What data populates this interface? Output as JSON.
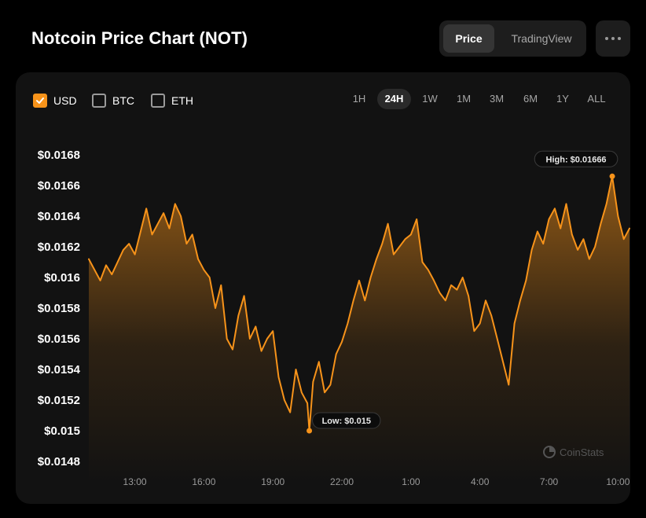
{
  "header": {
    "title": "Notcoin Price Chart (NOT)",
    "view_options": [
      "Price",
      "TradingView"
    ],
    "selected_view": "Price",
    "more_icon": "more-horizontal-icon"
  },
  "currency_options": [
    {
      "label": "USD",
      "checked": true
    },
    {
      "label": "BTC",
      "checked": false
    },
    {
      "label": "ETH",
      "checked": false
    }
  ],
  "time_ranges": [
    "1H",
    "24H",
    "1W",
    "1M",
    "3M",
    "6M",
    "1Y",
    "ALL"
  ],
  "selected_range": "24H",
  "watermark": "CoinStats",
  "colors": {
    "line": "#f7931a",
    "accent": "#f7931a",
    "background": "#000000",
    "card": "#121212"
  },
  "chart_data": {
    "type": "area",
    "title": "",
    "xlabel": "",
    "ylabel": "",
    "x_ticks": [
      "13:00",
      "16:00",
      "19:00",
      "22:00",
      "1:00",
      "4:00",
      "7:00",
      "10:00"
    ],
    "y_ticks": [
      "$0.0168",
      "$0.0166",
      "$0.0164",
      "$0.0162",
      "$0.016",
      "$0.0158",
      "$0.0156",
      "$0.0154",
      "$0.0152",
      "$0.015",
      "$0.0148"
    ],
    "ylim": [
      0.0148,
      0.0168
    ],
    "grid": false,
    "annotations": [
      {
        "label": "High: $0.01666",
        "time": "9:45",
        "value": 0.01666
      },
      {
        "label": "Low: $0.015",
        "time": "20:35",
        "value": 0.015
      }
    ],
    "series": [
      {
        "x": [
          "11:00",
          "11:15",
          "11:30",
          "11:45",
          "12:00",
          "12:15",
          "12:30",
          "12:45",
          "13:00",
          "13:15",
          "13:30",
          "13:45",
          "14:00",
          "14:15",
          "14:30",
          "14:45",
          "15:00",
          "15:15",
          "15:30",
          "15:45",
          "16:00",
          "16:15",
          "16:30",
          "16:45",
          "17:00",
          "17:15",
          "17:30",
          "17:45",
          "18:00",
          "18:15",
          "18:30",
          "18:45",
          "19:00",
          "19:15",
          "19:30",
          "19:45",
          "20:00",
          "20:15",
          "20:30",
          "20:35",
          "20:45",
          "21:00",
          "21:15",
          "21:30",
          "21:45",
          "22:00",
          "22:15",
          "22:30",
          "22:45",
          "23:00",
          "23:15",
          "23:30",
          "23:45",
          "0:00",
          "0:15",
          "0:30",
          "0:45",
          "1:00",
          "1:15",
          "1:30",
          "1:45",
          "2:00",
          "2:15",
          "2:30",
          "2:45",
          "3:00",
          "3:15",
          "3:30",
          "3:45",
          "4:00",
          "4:15",
          "4:30",
          "4:45",
          "5:00",
          "5:15",
          "5:30",
          "5:45",
          "6:00",
          "6:15",
          "6:30",
          "6:45",
          "7:00",
          "7:15",
          "7:30",
          "7:45",
          "8:00",
          "8:15",
          "8:30",
          "8:45",
          "9:00",
          "9:15",
          "9:30",
          "9:45",
          "10:00",
          "10:15",
          "10:30"
        ],
        "y": [
          0.01612,
          0.01605,
          0.01598,
          0.01608,
          0.01602,
          0.0161,
          0.01618,
          0.01622,
          0.01615,
          0.0163,
          0.01645,
          0.01628,
          0.01635,
          0.01642,
          0.01632,
          0.01648,
          0.0164,
          0.01622,
          0.01628,
          0.01612,
          0.01605,
          0.016,
          0.0158,
          0.01595,
          0.0156,
          0.01553,
          0.01575,
          0.01588,
          0.0156,
          0.01568,
          0.01552,
          0.0156,
          0.01565,
          0.01535,
          0.0152,
          0.01512,
          0.0154,
          0.01525,
          0.01518,
          0.015,
          0.01532,
          0.01545,
          0.01525,
          0.0153,
          0.0155,
          0.01558,
          0.0157,
          0.01585,
          0.01598,
          0.01585,
          0.016,
          0.01612,
          0.01622,
          0.01635,
          0.01615,
          0.0162,
          0.01625,
          0.01628,
          0.01638,
          0.0161,
          0.01605,
          0.01598,
          0.0159,
          0.01585,
          0.01595,
          0.01592,
          0.016,
          0.01588,
          0.01565,
          0.0157,
          0.01585,
          0.01575,
          0.0156,
          0.01545,
          0.0153,
          0.0157,
          0.01585,
          0.01598,
          0.01618,
          0.0163,
          0.01622,
          0.01638,
          0.01645,
          0.01632,
          0.01648,
          0.01628,
          0.01618,
          0.01625,
          0.01612,
          0.0162,
          0.01635,
          0.01648,
          0.01666,
          0.0164,
          0.01625,
          0.01632
        ]
      }
    ]
  }
}
